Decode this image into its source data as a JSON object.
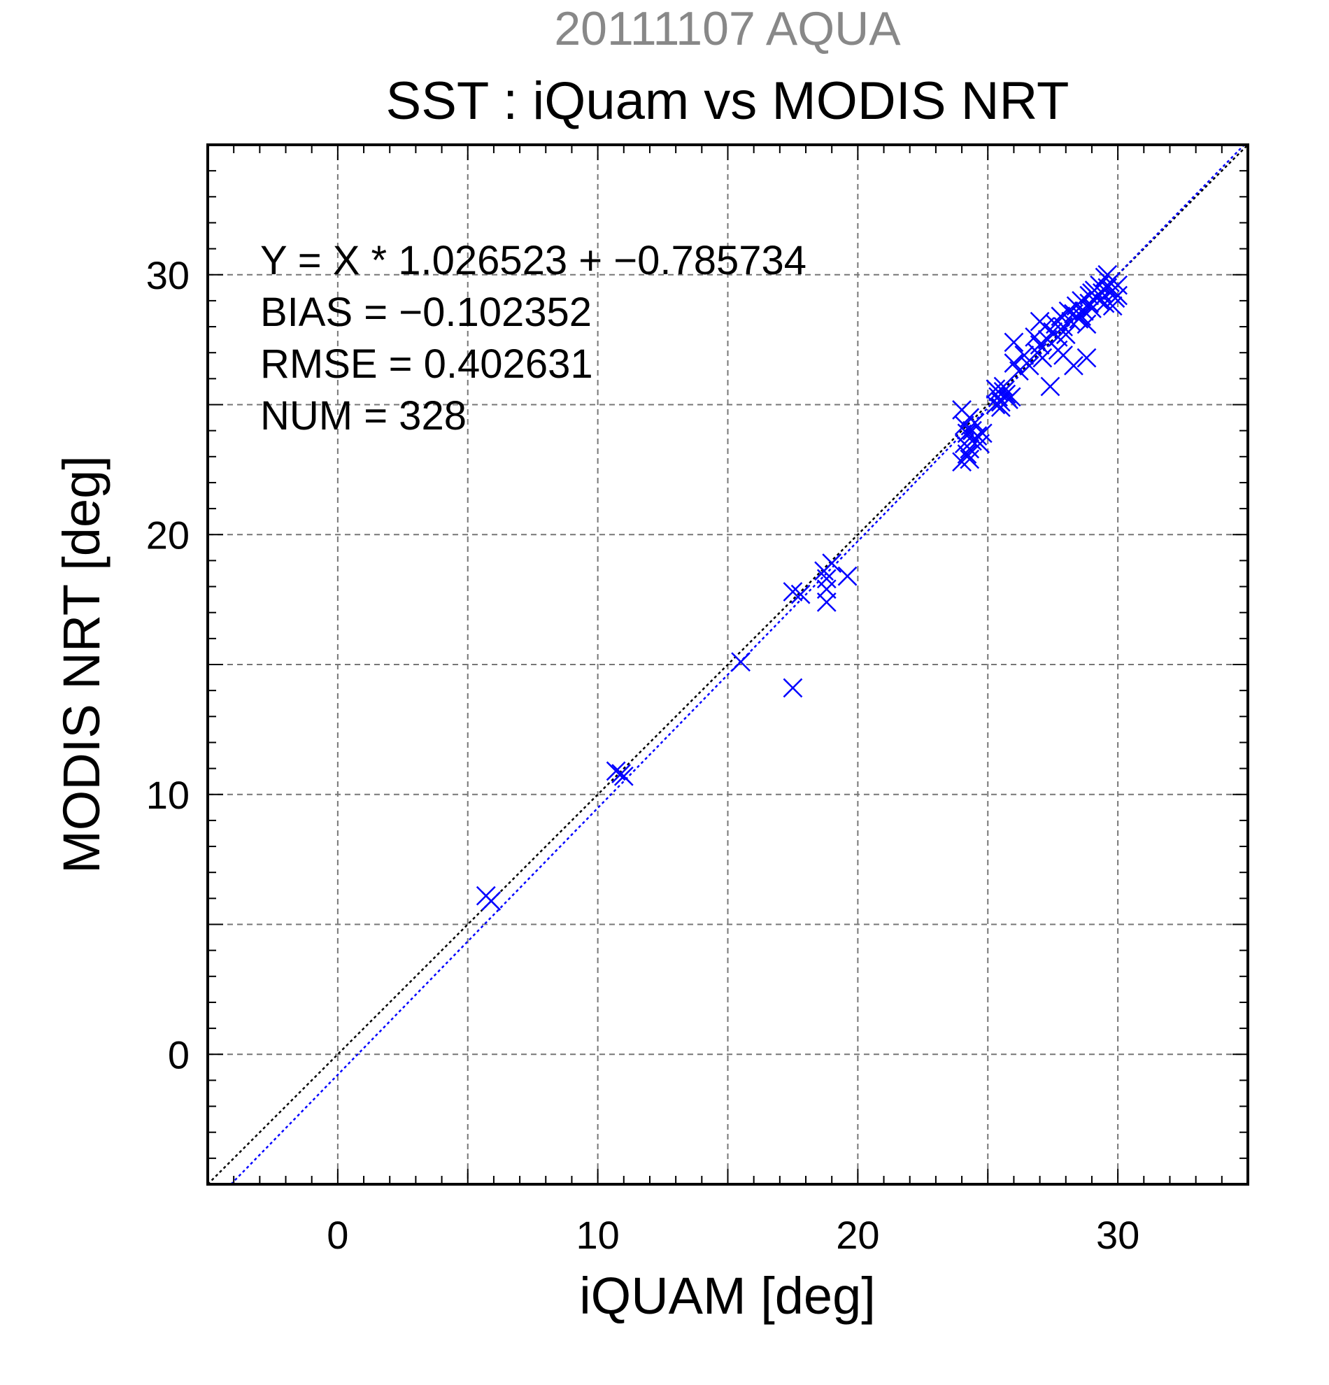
{
  "chart_data": {
    "type": "scatter",
    "subtitle": "20111107 AQUA",
    "title": "SST : iQuam vs MODIS NRT",
    "xlabel": "iQUAM [deg]",
    "ylabel": "MODIS NRT [deg]",
    "xlim": [
      -5,
      35
    ],
    "ylim": [
      -5,
      35
    ],
    "xticks": [
      0,
      10,
      20,
      30
    ],
    "yticks": [
      0,
      10,
      20,
      30
    ],
    "grid": true,
    "annotations": [
      "Y = X * 1.026523 + −0.785734",
      "BIAS = −0.102352",
      "RMSE = 0.402631",
      "NUM = 328"
    ],
    "reference_line": {
      "slope": 1,
      "intercept": 0,
      "color": "#000000"
    },
    "fit_line": {
      "slope": 1.026523,
      "intercept": -0.785734,
      "color": "#0000ff"
    },
    "series": [
      {
        "marker": "x",
        "color": "#0000ff",
        "points": [
          [
            5.7,
            6.1
          ],
          [
            5.9,
            5.9
          ],
          [
            10.7,
            10.9
          ],
          [
            10.9,
            10.8
          ],
          [
            11.0,
            10.7
          ],
          [
            15.5,
            15.1
          ],
          [
            17.5,
            17.8
          ],
          [
            17.8,
            17.7
          ],
          [
            17.5,
            14.1
          ],
          [
            18.7,
            18.6
          ],
          [
            18.8,
            18.3
          ],
          [
            19.0,
            18.9
          ],
          [
            18.8,
            17.9
          ],
          [
            18.8,
            17.4
          ],
          [
            19.6,
            18.4
          ],
          [
            24.0,
            24.8
          ],
          [
            24.1,
            24.2
          ],
          [
            24.2,
            23.9
          ],
          [
            24.3,
            24.5
          ],
          [
            24.4,
            24.0
          ],
          [
            24.5,
            23.7
          ],
          [
            24.1,
            23.5
          ],
          [
            24.2,
            23.1
          ],
          [
            24.0,
            22.8
          ],
          [
            24.3,
            22.9
          ],
          [
            24.6,
            23.8
          ],
          [
            24.7,
            23.5
          ],
          [
            24.5,
            24.3
          ],
          [
            24.3,
            23.3
          ],
          [
            24.8,
            23.9
          ],
          [
            24.4,
            23.6
          ],
          [
            25.3,
            25.6
          ],
          [
            25.4,
            25.3
          ],
          [
            25.5,
            25.1
          ],
          [
            25.6,
            25.7
          ],
          [
            25.7,
            25.4
          ],
          [
            25.3,
            25.0
          ],
          [
            25.5,
            24.9
          ],
          [
            25.8,
            25.2
          ],
          [
            25.6,
            25.5
          ],
          [
            25.9,
            25.3
          ],
          [
            25.4,
            25.5
          ],
          [
            26.0,
            26.6
          ],
          [
            26.2,
            26.3
          ],
          [
            26.4,
            26.9
          ],
          [
            26.6,
            26.5
          ],
          [
            26.0,
            27.4
          ],
          [
            26.8,
            27.6
          ],
          [
            26.9,
            27.0
          ],
          [
            27.0,
            27.3
          ],
          [
            27.1,
            26.8
          ],
          [
            27.2,
            28.0
          ],
          [
            27.3,
            27.5
          ],
          [
            27.0,
            28.2
          ],
          [
            27.4,
            25.7
          ],
          [
            27.5,
            27.8
          ],
          [
            27.6,
            28.1
          ],
          [
            27.7,
            27.6
          ],
          [
            27.8,
            28.4
          ],
          [
            27.9,
            28.0
          ],
          [
            28.0,
            27.7
          ],
          [
            28.1,
            28.6
          ],
          [
            28.2,
            28.2
          ],
          [
            28.3,
            26.5
          ],
          [
            27.7,
            27.1
          ],
          [
            27.9,
            26.9
          ],
          [
            28.3,
            28.5
          ],
          [
            28.4,
            28.8
          ],
          [
            28.5,
            28.3
          ],
          [
            28.6,
            29.0
          ],
          [
            28.7,
            28.6
          ],
          [
            28.8,
            28.1
          ],
          [
            28.9,
            29.2
          ],
          [
            29.0,
            28.7
          ],
          [
            28.8,
            26.8
          ],
          [
            28.6,
            28.4
          ],
          [
            28.9,
            28.9
          ],
          [
            29.0,
            29.3
          ],
          [
            29.1,
            29.4
          ],
          [
            29.2,
            29.1
          ],
          [
            29.3,
            29.6
          ],
          [
            29.4,
            29.3
          ],
          [
            29.5,
            29.9
          ],
          [
            29.6,
            29.5
          ],
          [
            29.7,
            29.7
          ],
          [
            29.8,
            29.4
          ],
          [
            29.9,
            29.1
          ],
          [
            30.0,
            29.6
          ],
          [
            29.5,
            28.9
          ],
          [
            29.8,
            28.8
          ],
          [
            29.3,
            29.0
          ],
          [
            29.6,
            30.0
          ],
          [
            30.0,
            29.2
          ]
        ]
      }
    ]
  }
}
